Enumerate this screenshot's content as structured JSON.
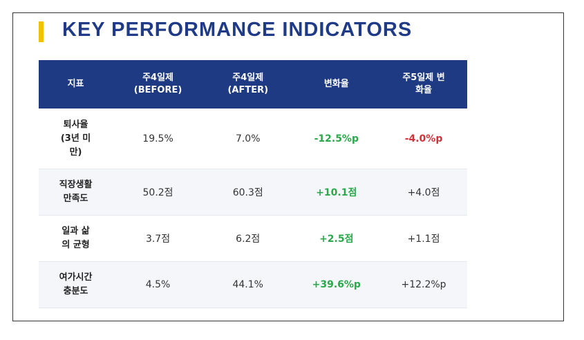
{
  "title": "KEY PERFORMANCE INDICATORS",
  "colors": {
    "accent": "#f2c200",
    "title": "#1f3a86",
    "header_bg": "#1e3a82",
    "positive": "#2aa84a",
    "negative": "#d0323a"
  },
  "table": {
    "headers": [
      "지표",
      "주4일제\n(BEFORE)",
      "주4일제\n(AFTER)",
      "변화율",
      "주5일제 변\n화율"
    ],
    "rows": [
      {
        "metric": "퇴사율\n(3년 미\n만)",
        "before": "19.5%",
        "after": "7.0%",
        "change": "-12.5%p",
        "change5": "-4.0%p"
      },
      {
        "metric": "직장생활\n만족도",
        "before": "50.2점",
        "after": "60.3점",
        "change": "+10.1점",
        "change5": "+4.0점"
      },
      {
        "metric": "일과 삶\n의 균형",
        "before": "3.7점",
        "after": "6.2점",
        "change": "+2.5점",
        "change5": "+1.1점"
      },
      {
        "metric": "여가시간\n충분도",
        "before": "4.5%",
        "after": "44.1%",
        "change": "+39.6%p",
        "change5": "+12.2%p"
      }
    ]
  }
}
